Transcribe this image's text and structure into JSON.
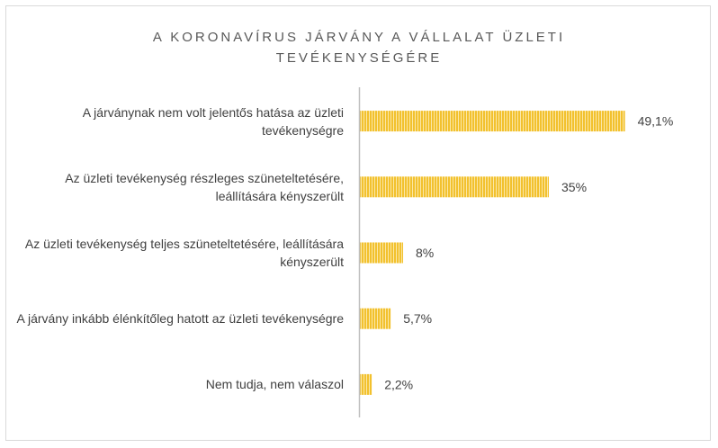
{
  "chart_data": {
    "type": "bar",
    "orientation": "horizontal",
    "title": "A KORONAVÍRUS JÁRVÁNY A VÁLLALAT ÜZLETI TEVÉKENYSÉGÉRE",
    "categories": [
      "A járványnak nem volt jelentős hatása az üzleti tevékenységre",
      "Az üzleti tevékenység részleges szüneteltetésére, leállítására kényszerült",
      "Az üzleti tevékenység teljes szüneteltetésére, leállítására kényszerült",
      "A járvány inkább élénkítőleg hatott az üzleti tevékenységre",
      "Nem tudja, nem válaszol"
    ],
    "values": [
      49.1,
      35,
      8,
      5.7,
      2.2
    ],
    "value_labels": [
      "49,1%",
      "35%",
      "8%",
      "5,7%",
      "2,2%"
    ],
    "xlim": [
      0,
      60
    ],
    "bar_color": "#f2c12e",
    "gridlines": false,
    "legend": "none"
  }
}
